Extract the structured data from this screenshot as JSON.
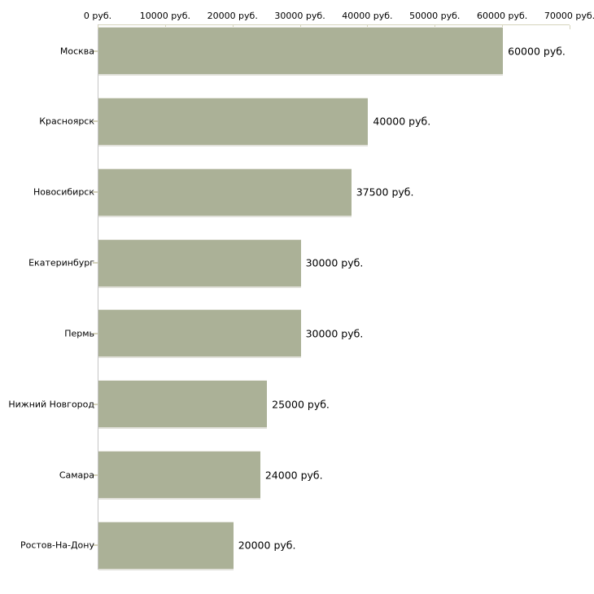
{
  "chart_data": {
    "type": "bar",
    "orientation": "horizontal",
    "title": "",
    "categories": [
      "Москва",
      "Красноярск",
      "Новосибирск",
      "Екатеринбург",
      "Пермь",
      "Нижний Новгород",
      "Самара",
      "Ростов-На-Дону"
    ],
    "values": [
      60000,
      40000,
      37500,
      30000,
      30000,
      25000,
      24000,
      20000
    ],
    "value_labels": [
      "60000 руб.",
      "40000 руб.",
      "37500 руб.",
      "30000 руб.",
      "30000 руб.",
      "25000 руб.",
      "24000 руб.",
      "20000 руб."
    ],
    "x_tick_values": [
      0,
      10000,
      20000,
      30000,
      40000,
      50000,
      60000,
      70000
    ],
    "x_tick_labels": [
      "0 руб.",
      "10000 руб.",
      "20000 руб.",
      "30000 руб.",
      "40000 руб.",
      "50000 руб.",
      "60000 руб.",
      "70000 руб."
    ],
    "xlim": [
      0,
      70000
    ],
    "unit": "руб.",
    "grid": false,
    "legend": false,
    "axis_position": "top",
    "colors": {
      "bar_fill": "#abb197",
      "bar_bottom_edge": "#e1e1da",
      "x_axis_line": "#d5d3bc",
      "y_axis_line": "#c4c4c4",
      "text": "#000000",
      "background": "#ffffff"
    }
  }
}
